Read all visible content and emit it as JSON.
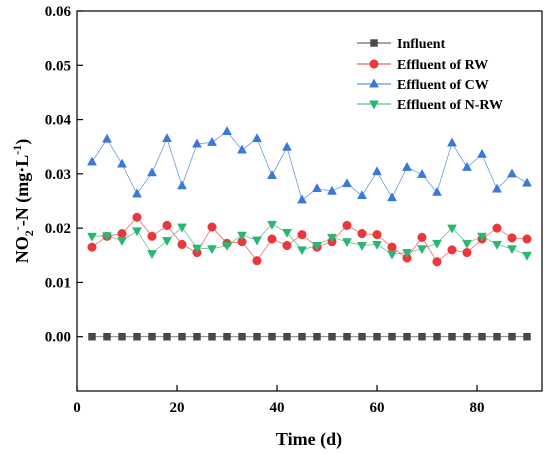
{
  "chart_data": {
    "type": "line",
    "xlabel": "Time (d)",
    "ylabel": {
      "parts": [
        "NO",
        "2",
        "-",
        "-N (mg·L",
        "-1",
        ")"
      ]
    },
    "xlim": [
      0,
      93
    ],
    "ylim": [
      -0.01,
      0.06
    ],
    "x_ticks": [
      0,
      20,
      40,
      60,
      80
    ],
    "y_ticks": [
      0.0,
      0.01,
      0.02,
      0.03,
      0.04,
      0.05,
      0.06
    ],
    "y_tick_labels": [
      "0.00",
      "0.01",
      "0.02",
      "0.03",
      "0.04",
      "0.05",
      "0.06"
    ],
    "legend_position": "top-right",
    "x": [
      3,
      6,
      9,
      12,
      15,
      18,
      21,
      24,
      27,
      30,
      33,
      36,
      39,
      42,
      45,
      48,
      51,
      54,
      57,
      60,
      63,
      66,
      69,
      72,
      75,
      78,
      81,
      84,
      87,
      90
    ],
    "series": [
      {
        "name": "Influent",
        "marker": "square",
        "color": "#4a4a4a",
        "values": [
          0,
          0,
          0,
          0,
          0,
          0,
          0,
          0,
          0,
          0,
          0,
          0,
          0,
          0,
          0,
          0,
          0,
          0,
          0,
          0,
          0,
          0,
          0,
          0,
          0,
          0,
          0,
          0,
          0,
          0
        ]
      },
      {
        "name": "Effluent of RW",
        "marker": "circle",
        "color": "#e8383d",
        "values": [
          0.0165,
          0.0185,
          0.019,
          0.022,
          0.0185,
          0.0205,
          0.017,
          0.0155,
          0.0202,
          0.0172,
          0.0175,
          0.014,
          0.018,
          0.0168,
          0.0188,
          0.0165,
          0.0175,
          0.0205,
          0.019,
          0.0188,
          0.0165,
          0.0145,
          0.0183,
          0.0138,
          0.016,
          0.0155,
          0.018,
          0.02,
          0.0182,
          0.018
        ]
      },
      {
        "name": "Effluent of CW",
        "marker": "triangle-up",
        "color": "#3b78d8",
        "values": [
          0.0322,
          0.0364,
          0.0318,
          0.0263,
          0.0302,
          0.0365,
          0.0278,
          0.0355,
          0.0358,
          0.0378,
          0.0344,
          0.0365,
          0.0297,
          0.0349,
          0.0252,
          0.0273,
          0.0268,
          0.0282,
          0.026,
          0.0304,
          0.0256,
          0.0312,
          0.0299,
          0.0266,
          0.0357,
          0.0312,
          0.0336,
          0.0272,
          0.03,
          0.0283
        ]
      },
      {
        "name": "Effluent of N-RW",
        "marker": "triangle-down",
        "color": "#2bb673",
        "values": [
          0.0185,
          0.0186,
          0.0177,
          0.0195,
          0.0153,
          0.0177,
          0.0202,
          0.0163,
          0.0162,
          0.0168,
          0.0187,
          0.0178,
          0.0207,
          0.0192,
          0.016,
          0.0168,
          0.0183,
          0.0175,
          0.0168,
          0.017,
          0.0152,
          0.0155,
          0.0162,
          0.0172,
          0.02,
          0.0172,
          0.0185,
          0.017,
          0.0162,
          0.015
        ]
      }
    ]
  }
}
